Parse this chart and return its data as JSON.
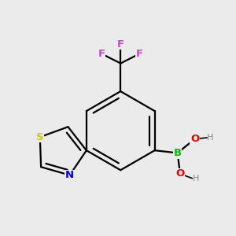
{
  "bg_color": "#ebebeb",
  "bond_color": "#000000",
  "bond_width": 1.6,
  "atom_colors": {
    "C": "#000000",
    "F": "#cc44cc",
    "S": "#cccc00",
    "N": "#0000ee",
    "B": "#00bb00",
    "O": "#ee0000",
    "H": "#888888"
  },
  "font_size": 9.5,
  "fig_size": [
    3.0,
    3.0
  ],
  "dpi": 100
}
